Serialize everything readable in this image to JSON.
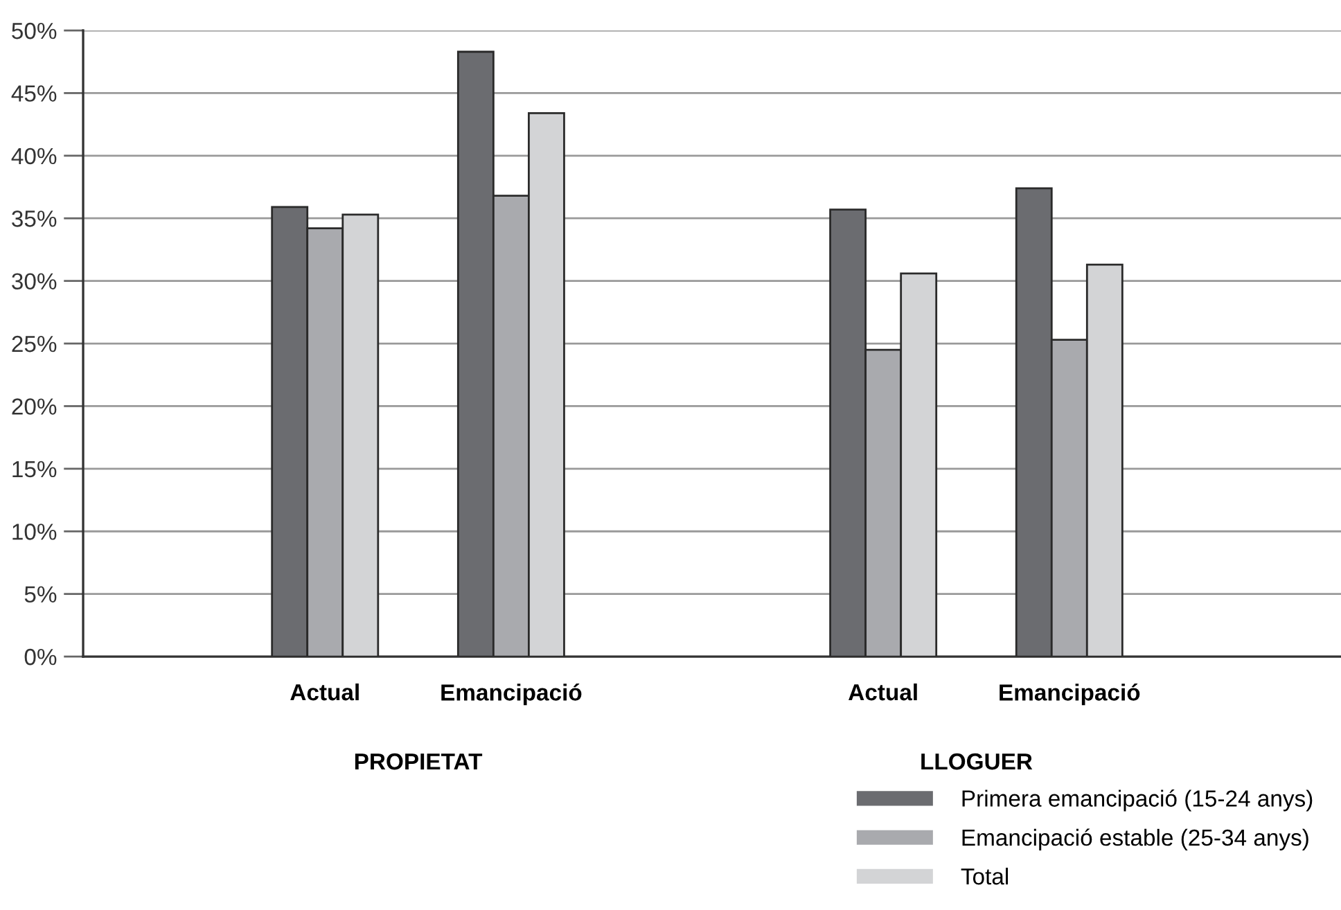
{
  "chart_data": {
    "type": "bar",
    "categories": [
      "Actual",
      "Emancipació",
      null,
      "Actual",
      "Emancipació"
    ],
    "series": [
      {
        "name": "Primera emancipació (15-24 anys)",
        "color": "#6b6c70",
        "values": [
          35.9,
          48.3,
          null,
          35.7,
          37.4
        ]
      },
      {
        "name": "Emancipació estable (25-34 anys)",
        "color": "#a9aaae",
        "values": [
          34.2,
          36.8,
          null,
          24.5,
          25.3
        ]
      },
      {
        "name": "Total",
        "color": "#d3d4d6",
        "values": [
          35.3,
          43.4,
          null,
          30.6,
          31.3
        ]
      }
    ],
    "annotations": [
      "PROPIETAT",
      "LLOGUER"
    ],
    "ylim": [
      0,
      50
    ],
    "yticks": [
      {
        "value": 0,
        "label": "0%"
      },
      {
        "value": 5,
        "label": "5%"
      },
      {
        "value": 10,
        "label": "10%"
      },
      {
        "value": 15,
        "label": "15%"
      },
      {
        "value": 20,
        "label": "20%"
      },
      {
        "value": 25,
        "label": "25%"
      },
      {
        "value": 30,
        "label": "30%"
      },
      {
        "value": 35,
        "label": "35%"
      },
      {
        "value": 40,
        "label": "40%"
      },
      {
        "value": 45,
        "label": "45%"
      },
      {
        "value": 50,
        "label": "50%"
      }
    ],
    "grid": "y",
    "legend": "bottom right"
  }
}
